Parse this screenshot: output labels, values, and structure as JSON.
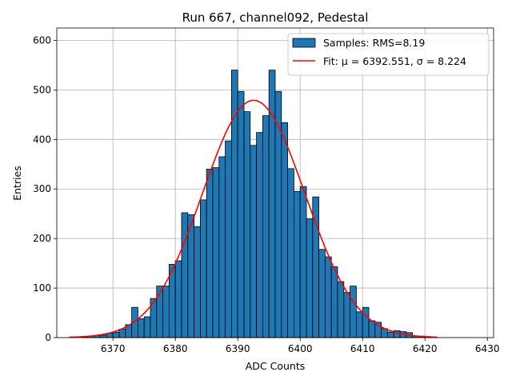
{
  "chart_data": {
    "type": "bar",
    "title": "Run 667, channel092, Pedestal",
    "xlabel": "ADC Counts",
    "ylabel": "Entries",
    "xlim": [
      6361,
      6431
    ],
    "ylim": [
      0,
      625
    ],
    "xticks": [
      6370,
      6380,
      6390,
      6400,
      6410,
      6420,
      6430
    ],
    "yticks": [
      0,
      100,
      200,
      300,
      400,
      500,
      600
    ],
    "grid": true,
    "legend_position": "top-right",
    "bin_width": 1,
    "bin_left_edges": [
      6365,
      6366,
      6367,
      6368,
      6369,
      6370,
      6371,
      6372,
      6373,
      6374,
      6375,
      6376,
      6377,
      6378,
      6379,
      6380,
      6381,
      6382,
      6383,
      6384,
      6385,
      6386,
      6387,
      6388,
      6389,
      6390,
      6391,
      6392,
      6393,
      6394,
      6395,
      6396,
      6397,
      6398,
      6399,
      6400,
      6401,
      6402,
      6403,
      6404,
      6405,
      6406,
      6407,
      6408,
      6409,
      6410,
      6411,
      6412,
      6413,
      6414,
      6415,
      6416,
      6417,
      6418,
      6419,
      6420
    ],
    "bin_counts": [
      2,
      3,
      4,
      5,
      9,
      11,
      17,
      26,
      61,
      38,
      42,
      79,
      104,
      104,
      148,
      155,
      252,
      248,
      224,
      278,
      340,
      343,
      365,
      397,
      540,
      497,
      456,
      388,
      414,
      448,
      540,
      497,
      434,
      341,
      295,
      305,
      240,
      284,
      178,
      163,
      143,
      113,
      91,
      104,
      52,
      61,
      34,
      31,
      18,
      11,
      14,
      12,
      10,
      3,
      3,
      2
    ],
    "series": [
      {
        "name": "Samples: RMS=8.19",
        "kind": "histogram",
        "color": "#1f77b4",
        "edgecolor": "#000000"
      },
      {
        "name": "Fit: μ = 6392.551, σ = 8.224",
        "kind": "gaussian-fit",
        "color": "#ff0000",
        "mu": 6392.551,
        "sigma": 8.224,
        "amplitude": 479,
        "x_range": [
          6363,
          6422
        ]
      }
    ]
  }
}
